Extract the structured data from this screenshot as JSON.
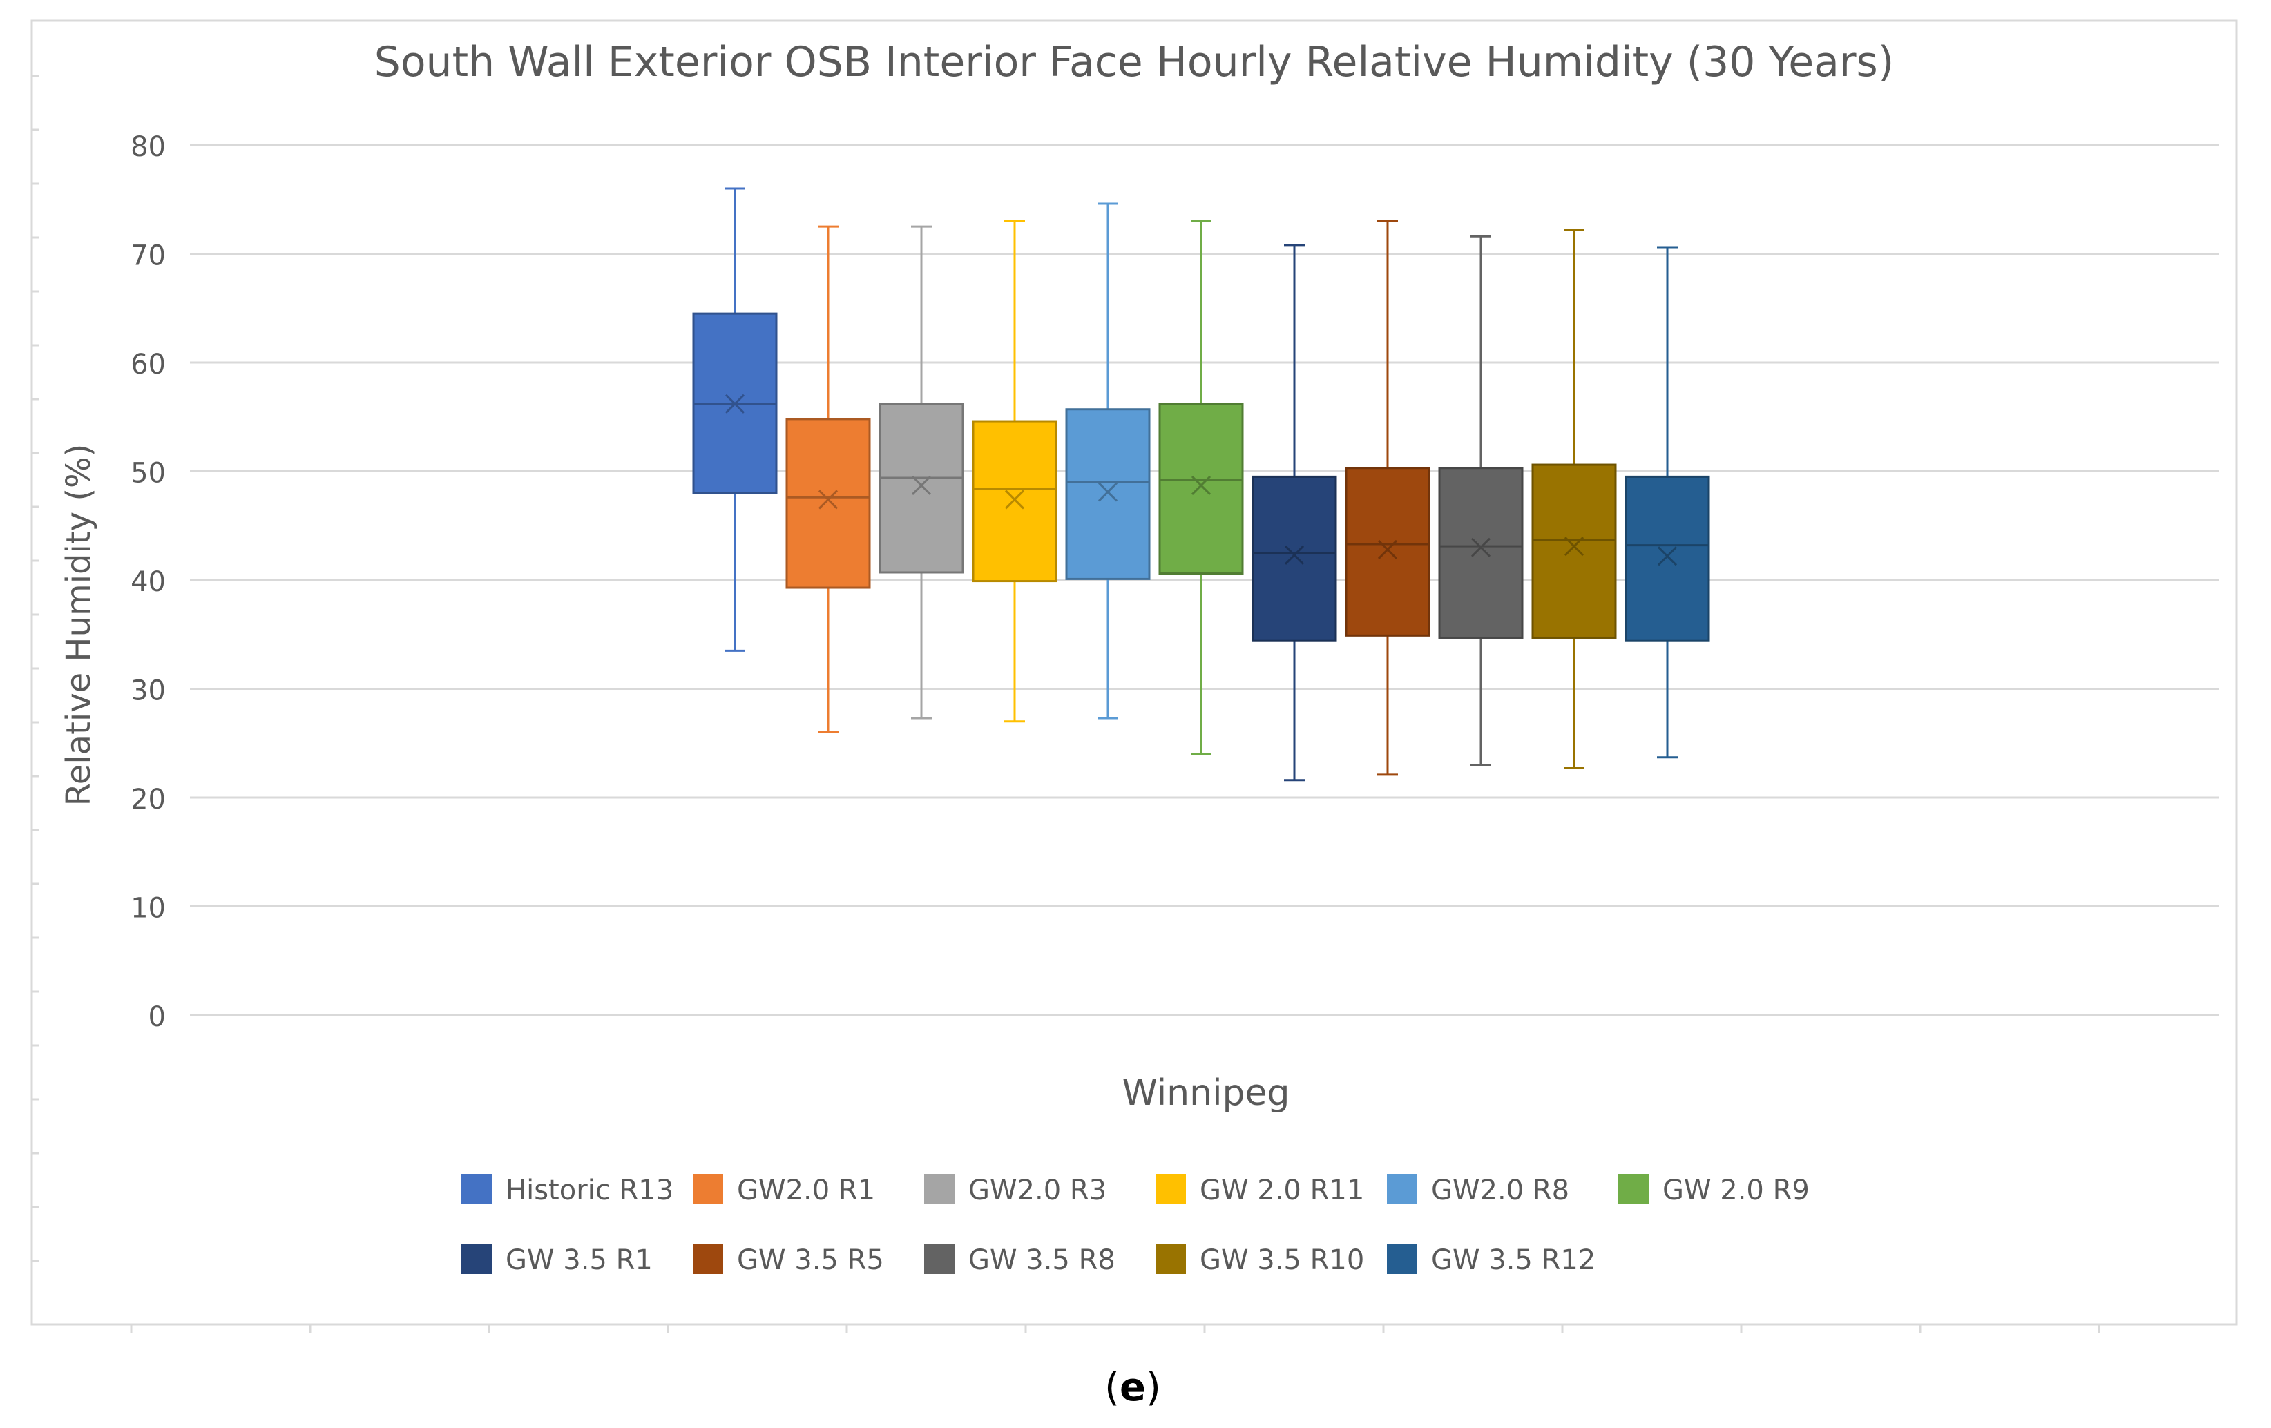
{
  "chart_data": {
    "type": "boxplot",
    "title": "South Wall Exterior OSB Interior Face Hourly Relative Humidity (30 Years)",
    "xlabel": "Winnipeg",
    "ylabel": "Relative Humidity (%)",
    "ylim": [
      0,
      80
    ],
    "yticks": [
      0,
      10,
      20,
      30,
      40,
      50,
      60,
      70,
      80
    ],
    "grid": true,
    "legend_position": "bottom",
    "series": [
      {
        "name": "Historic R13",
        "color": "#4472C4",
        "min": 33.5,
        "q1": 48.0,
        "median": 56.2,
        "mean": 56.2,
        "q3": 64.5,
        "max": 76.0
      },
      {
        "name": "GW2.0 R1",
        "color": "#ED7D31",
        "min": 26.0,
        "q1": 39.3,
        "median": 47.6,
        "mean": 47.4,
        "q3": 54.8,
        "max": 72.5
      },
      {
        "name": "GW2.0 R3",
        "color": "#A5A5A5",
        "min": 27.3,
        "q1": 40.7,
        "median": 49.4,
        "mean": 48.7,
        "q3": 56.2,
        "max": 72.5
      },
      {
        "name": "GW 2.0 R11",
        "color": "#FFC000",
        "min": 27.0,
        "q1": 39.9,
        "median": 48.4,
        "mean": 47.4,
        "q3": 54.6,
        "max": 73.0
      },
      {
        "name": "GW2.0 R8",
        "color": "#5B9BD5",
        "min": 27.3,
        "q1": 40.1,
        "median": 49.0,
        "mean": 48.1,
        "q3": 55.7,
        "max": 74.6
      },
      {
        "name": "GW 2.0 R9",
        "color": "#70AD47",
        "min": 24.0,
        "q1": 40.6,
        "median": 49.2,
        "mean": 48.7,
        "q3": 56.2,
        "max": 73.0
      },
      {
        "name": "GW 3.5 R1",
        "color": "#264478",
        "min": 21.6,
        "q1": 34.4,
        "median": 42.5,
        "mean": 42.3,
        "q3": 49.5,
        "max": 70.8
      },
      {
        "name": "GW 3.5 R5",
        "color": "#9E480E",
        "min": 22.1,
        "q1": 34.9,
        "median": 43.3,
        "mean": 42.8,
        "q3": 50.3,
        "max": 73.0
      },
      {
        "name": "GW 3.5 R8",
        "color": "#636363",
        "min": 23.0,
        "q1": 34.7,
        "median": 43.1,
        "mean": 43.0,
        "q3": 50.3,
        "max": 71.6
      },
      {
        "name": "GW 3.5 R10",
        "color": "#997300",
        "min": 22.7,
        "q1": 34.7,
        "median": 43.7,
        "mean": 43.1,
        "q3": 50.6,
        "max": 72.2
      },
      {
        "name": "GW 3.5 R12",
        "color": "#255E91",
        "min": 23.7,
        "q1": 34.4,
        "median": 43.2,
        "mean": 42.2,
        "q3": 49.5,
        "max": 70.6
      }
    ]
  },
  "caption": {
    "open_paren": "(",
    "letter": "e",
    "close_paren": ")"
  }
}
